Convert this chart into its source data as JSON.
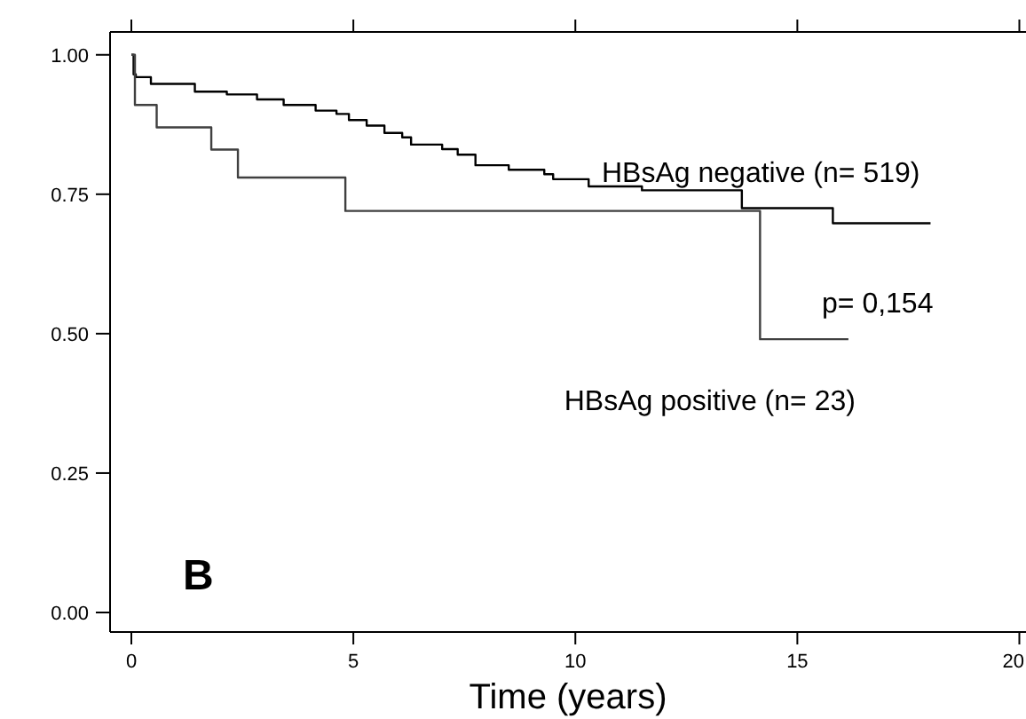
{
  "chart_data": {
    "type": "step",
    "xlabel": "Time (years)",
    "xlim": [
      -0.48,
      20.15
    ],
    "ylim": [
      -0.035,
      1.041
    ],
    "xticks": [
      0,
      5,
      10,
      15,
      20
    ],
    "yticks": [
      {
        "value": 0,
        "label": "0.00"
      },
      {
        "value": 0.25,
        "label": "0.25"
      },
      {
        "value": 0.5,
        "label": "0.50"
      },
      {
        "value": 0.75,
        "label": "0.75"
      },
      {
        "value": 1,
        "label": "1.00"
      }
    ],
    "grid": false,
    "series": [
      {
        "name": "HBsAg negative (n= 519)",
        "color": "#000000",
        "x": [
          0,
          0.05,
          0.1,
          0.44,
          1.43,
          2.15,
          2.83,
          3.43,
          4.15,
          4.62,
          4.9,
          5.3,
          5.7,
          6.1,
          6.3,
          7.0,
          7.35,
          7.75,
          8.5,
          9.3,
          9.5,
          10.3,
          11.5,
          13.75,
          15.8,
          18.0
        ],
        "values": [
          1,
          0.965,
          0.96,
          0.948,
          0.934,
          0.929,
          0.92,
          0.91,
          0.9,
          0.894,
          0.883,
          0.873,
          0.86,
          0.852,
          0.839,
          0.831,
          0.821,
          0.802,
          0.794,
          0.786,
          0.777,
          0.764,
          0.757,
          0.725,
          0.698,
          0.698
        ]
      },
      {
        "name": "HBsAg positive (n= 23)",
        "color": "#404040",
        "x": [
          0,
          0.08,
          0.57,
          1.8,
          2.4,
          4.82,
          14.16,
          16.15
        ],
        "values": [
          1,
          0.91,
          0.87,
          0.83,
          0.78,
          0.72,
          0.49,
          0.49
        ]
      }
    ],
    "annotations": [
      "p= 0,154",
      "B"
    ]
  }
}
